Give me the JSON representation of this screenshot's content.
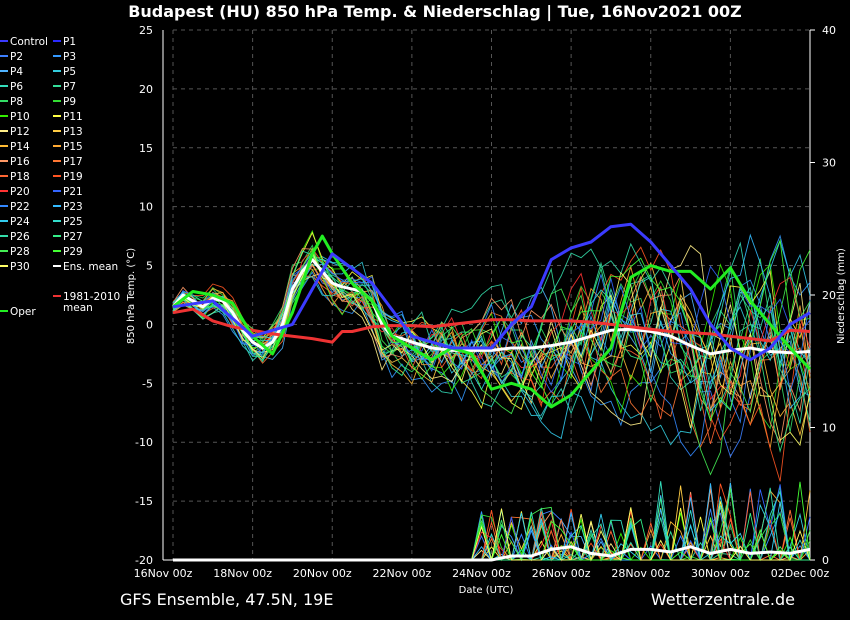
{
  "chart_data": {
    "type": "line",
    "title": "Budapest  (HU)  850 hPa Temp. & Niederschlag | Tue, 16Nov2021 00Z",
    "xlabel": "Date (UTC)",
    "ylabel_left": "850 hPa Temp. (°C)",
    "ylabel_right": "Niederschlag (mm)",
    "footer_left": "GFS Ensemble, 47.5N, 19E",
    "footer_right": "Wetterzentrale.de",
    "ylim_left": [
      -20,
      25
    ],
    "ylim_right": [
      0,
      40
    ],
    "yticks_left": [
      "25",
      "20",
      "15",
      "10",
      "5",
      "0",
      "-5",
      "-10",
      "-15",
      "-20"
    ],
    "yticks_right": [
      "40",
      "30",
      "20",
      "10",
      "0"
    ],
    "xticks": [
      "16Nov 00z",
      "18Nov 00z",
      "20Nov 00z",
      "22Nov 00z",
      "24Nov 00z",
      "26Nov 00z",
      "28Nov 00z",
      "30Nov 00z",
      "02Dec 00z"
    ],
    "x_days": [
      0,
      16
    ],
    "grid": true,
    "legend": [
      {
        "label": "Control",
        "color": "#3b3bff"
      },
      {
        "label": "P1",
        "color": "#2a2aff"
      },
      {
        "label": "P2",
        "color": "#3d7fff"
      },
      {
        "label": "P3",
        "color": "#3399ff"
      },
      {
        "label": "P4",
        "color": "#4fb3ff"
      },
      {
        "label": "P5",
        "color": "#33ccdd"
      },
      {
        "label": "P6",
        "color": "#33ddbb"
      },
      {
        "label": "P7",
        "color": "#33dd99"
      },
      {
        "label": "P8",
        "color": "#33dd66"
      },
      {
        "label": "P9",
        "color": "#33dd33"
      },
      {
        "label": "P10",
        "color": "#33ee00"
      },
      {
        "label": "P11",
        "color": "#ffff44"
      },
      {
        "label": "P12",
        "color": "#ffee88"
      },
      {
        "label": "P13",
        "color": "#ffcc44"
      },
      {
        "label": "P14",
        "color": "#ffbb33"
      },
      {
        "label": "P15",
        "color": "#ffaa33"
      },
      {
        "label": "P16",
        "color": "#ff9966"
      },
      {
        "label": "P17",
        "color": "#ff7733"
      },
      {
        "label": "P18",
        "color": "#ff6633"
      },
      {
        "label": "P19",
        "color": "#ff5522"
      },
      {
        "label": "P20",
        "color": "#ff3333"
      },
      {
        "label": "P21",
        "color": "#3366ff"
      },
      {
        "label": "P22",
        "color": "#3388ff"
      },
      {
        "label": "P23",
        "color": "#33bbff"
      },
      {
        "label": "P24",
        "color": "#33ccee"
      },
      {
        "label": "P25",
        "color": "#33ddcc"
      },
      {
        "label": "P26",
        "color": "#33ddaa"
      },
      {
        "label": "P27",
        "color": "#33ee88"
      },
      {
        "label": "P28",
        "color": "#44ee55"
      },
      {
        "label": "P29",
        "color": "#44ff33"
      },
      {
        "label": "P30",
        "color": "#ffff66"
      },
      {
        "label": "Ens. mean",
        "color": "#ffffff"
      },
      {
        "label": "Oper",
        "color": "#22ee22"
      },
      {
        "label": "1981-2010 mean",
        "color": "#ee3333"
      }
    ],
    "series": [
      {
        "name": "Ens. mean",
        "color": "#ffffff",
        "axis": "left",
        "x": [
          0,
          0.25,
          0.5,
          0.75,
          1,
          1.25,
          1.5,
          1.75,
          2,
          2.25,
          2.5,
          2.75,
          3,
          3.25,
          3.5,
          3.75,
          4,
          4.25,
          4.5,
          4.75,
          5,
          5.25,
          5.5,
          5.75,
          6,
          6.5,
          7,
          7.5,
          8,
          8.5,
          9,
          9.5,
          10,
          10.5,
          11,
          11.5,
          12,
          12.5,
          13,
          13.5,
          14,
          14.5,
          15,
          15.5,
          16
        ],
        "y": [
          1.5,
          2.5,
          2,
          1.5,
          2.2,
          2,
          1,
          -0.5,
          -1.5,
          -2,
          -1.5,
          0,
          3,
          4.5,
          5.5,
          4.5,
          3.5,
          3.2,
          3,
          2.8,
          2,
          0,
          -1,
          -1.2,
          -1.5,
          -2,
          -2.2,
          -2.2,
          -2.2,
          -2,
          -2,
          -1.8,
          -1.5,
          -1,
          -0.5,
          -0.4,
          -0.6,
          -1,
          -1.8,
          -2.5,
          -2.2,
          -2,
          -2.3,
          -2.4,
          -2.3
        ]
      },
      {
        "name": "1981-2010 mean",
        "color": "#ee3333",
        "axis": "left",
        "x": [
          0,
          0.5,
          1,
          1.5,
          2,
          2.5,
          3,
          3.5,
          4,
          4.25,
          4.5,
          5,
          5.5,
          6,
          6.5,
          7,
          7.5,
          8,
          8.5,
          9,
          9.5,
          10,
          10.5,
          11,
          11.5,
          12,
          12.5,
          13,
          13.5,
          14,
          14.5,
          15,
          15.5,
          16
        ],
        "y": [
          1,
          1.3,
          0.3,
          -0.2,
          -0.5,
          -0.8,
          -1,
          -1.2,
          -1.5,
          -0.6,
          -0.6,
          -0.2,
          -0.1,
          -0.1,
          -0.2,
          0,
          0.2,
          0.4,
          0.4,
          0.3,
          0.3,
          0.3,
          0.2,
          0,
          -0.2,
          -0.4,
          -0.6,
          -0.7,
          -0.8,
          -1,
          -1.2,
          -1.4,
          -0.5,
          -0.6
        ]
      },
      {
        "name": "Oper",
        "color": "#22ee22",
        "axis": "left",
        "x": [
          0,
          0.5,
          1,
          1.5,
          2,
          2.5,
          3,
          3.5,
          3.75,
          4,
          4.5,
          5,
          5.5,
          6,
          6.5,
          7,
          7.5,
          8,
          8.5,
          9,
          9.5,
          10,
          10.5,
          11,
          11.5,
          12,
          12.5,
          13,
          13.5,
          14,
          14.5,
          15,
          15.5,
          16
        ],
        "y": [
          1.5,
          2.8,
          2.5,
          1.8,
          -1,
          -2.5,
          1,
          6,
          7.5,
          6,
          3.5,
          2,
          -1,
          -2,
          -3,
          -2,
          -2.5,
          -5.5,
          -5,
          -5.5,
          -7,
          -6,
          -4,
          -2,
          4,
          5,
          4.5,
          4.5,
          3,
          4.8,
          2,
          0,
          -2,
          -3.8
        ]
      },
      {
        "name": "Control",
        "color": "#3b3bff",
        "axis": "left",
        "x": [
          0,
          1,
          2,
          3,
          4,
          5,
          6,
          7,
          8,
          8.5,
          9,
          9.5,
          10,
          10.5,
          11,
          11.5,
          12,
          12.5,
          13,
          13.5,
          14,
          14.5,
          15,
          15.5,
          16
        ],
        "y": [
          1.5,
          2,
          -1,
          0,
          6,
          3.5,
          -1,
          -2,
          -2,
          0,
          1.5,
          5.5,
          6.5,
          7,
          8.3,
          8.5,
          7,
          5,
          3,
          0,
          -2,
          -3,
          -2,
          0,
          1
        ]
      }
    ],
    "precip_ens_mean": {
      "x": [
        0,
        8,
        8.5,
        9,
        9.5,
        10,
        10.5,
        11,
        11.5,
        12,
        12.5,
        13,
        13.5,
        14,
        14.5,
        15,
        15.5,
        16
      ],
      "y": [
        0,
        0,
        0.3,
        0.3,
        0.8,
        1,
        0.5,
        0.3,
        0.8,
        0.8,
        0.6,
        1,
        0.5,
        0.8,
        0.5,
        0.6,
        0.5,
        0.8
      ]
    }
  }
}
